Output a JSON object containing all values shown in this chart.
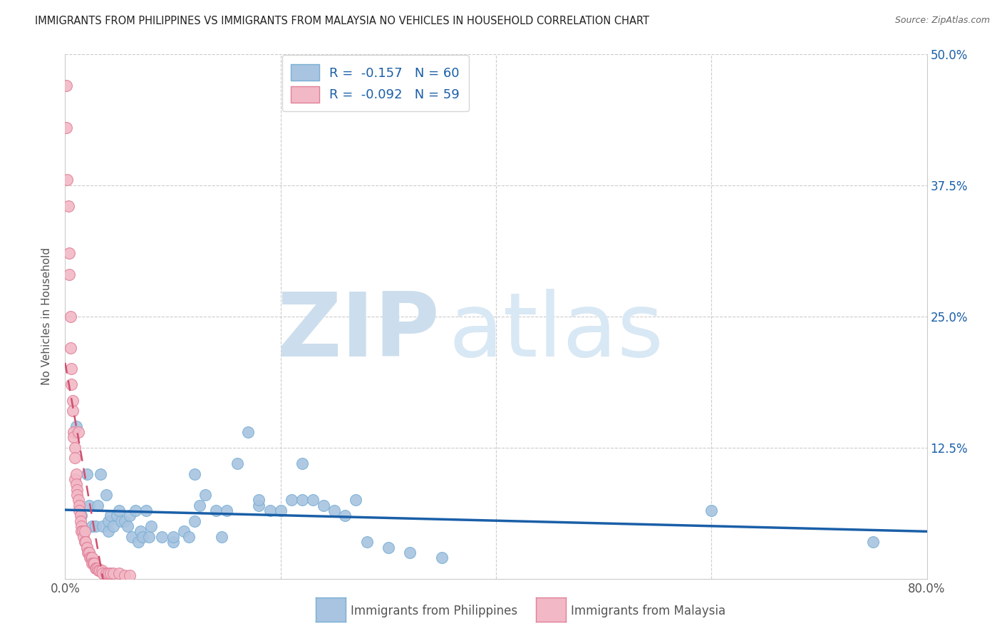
{
  "title": "IMMIGRANTS FROM PHILIPPINES VS IMMIGRANTS FROM MALAYSIA NO VEHICLES IN HOUSEHOLD CORRELATION CHART",
  "source": "Source: ZipAtlas.com",
  "ylabel": "No Vehicles in Household",
  "xlabel_philippines": "Immigrants from Philippines",
  "xlabel_malaysia": "Immigrants from Malaysia",
  "xlim": [
    0.0,
    0.8
  ],
  "ylim": [
    0.0,
    0.5
  ],
  "yticks": [
    0.0,
    0.125,
    0.25,
    0.375,
    0.5
  ],
  "xticks": [
    0.0,
    0.2,
    0.4,
    0.6,
    0.8
  ],
  "R_philippines": -0.157,
  "N_philippines": 60,
  "R_malaysia": -0.092,
  "N_malaysia": 59,
  "color_philippines": "#a8c4e0",
  "color_philippines_edge": "#7aafd4",
  "color_philippines_line": "#1a5fa8",
  "color_malaysia": "#f2b8c6",
  "color_malaysia_edge": "#e08098",
  "color_malaysia_line": "#d05070",
  "background_color": "#ffffff",
  "title_fontsize": 10.5,
  "source_fontsize": 9,
  "philippines_x": [
    0.01,
    0.015,
    0.02,
    0.022,
    0.025,
    0.028,
    0.03,
    0.033,
    0.035,
    0.038,
    0.04,
    0.04,
    0.042,
    0.045,
    0.048,
    0.05,
    0.052,
    0.055,
    0.058,
    0.06,
    0.062,
    0.065,
    0.068,
    0.07,
    0.072,
    0.075,
    0.078,
    0.08,
    0.09,
    0.1,
    0.1,
    0.11,
    0.115,
    0.12,
    0.12,
    0.125,
    0.13,
    0.14,
    0.145,
    0.15,
    0.16,
    0.17,
    0.18,
    0.18,
    0.19,
    0.2,
    0.21,
    0.22,
    0.22,
    0.23,
    0.24,
    0.25,
    0.26,
    0.27,
    0.28,
    0.3,
    0.32,
    0.35,
    0.6,
    0.75
  ],
  "philippines_y": [
    0.145,
    0.06,
    0.1,
    0.07,
    0.05,
    0.05,
    0.07,
    0.1,
    0.05,
    0.08,
    0.045,
    0.055,
    0.06,
    0.05,
    0.06,
    0.065,
    0.055,
    0.055,
    0.05,
    0.06,
    0.04,
    0.065,
    0.035,
    0.045,
    0.04,
    0.065,
    0.04,
    0.05,
    0.04,
    0.035,
    0.04,
    0.045,
    0.04,
    0.1,
    0.055,
    0.07,
    0.08,
    0.065,
    0.04,
    0.065,
    0.11,
    0.14,
    0.07,
    0.075,
    0.065,
    0.065,
    0.075,
    0.11,
    0.075,
    0.075,
    0.07,
    0.065,
    0.06,
    0.075,
    0.035,
    0.03,
    0.025,
    0.02,
    0.065,
    0.035
  ],
  "malaysia_x": [
    0.001,
    0.001,
    0.002,
    0.003,
    0.004,
    0.004,
    0.005,
    0.005,
    0.006,
    0.006,
    0.007,
    0.007,
    0.008,
    0.008,
    0.009,
    0.009,
    0.009,
    0.01,
    0.01,
    0.011,
    0.011,
    0.012,
    0.012,
    0.013,
    0.013,
    0.014,
    0.014,
    0.015,
    0.015,
    0.016,
    0.017,
    0.018,
    0.018,
    0.019,
    0.02,
    0.02,
    0.021,
    0.022,
    0.022,
    0.023,
    0.024,
    0.025,
    0.025,
    0.026,
    0.027,
    0.028,
    0.029,
    0.03,
    0.031,
    0.032,
    0.034,
    0.035,
    0.038,
    0.04,
    0.042,
    0.045,
    0.05,
    0.055,
    0.06
  ],
  "malaysia_y": [
    0.47,
    0.43,
    0.38,
    0.355,
    0.31,
    0.29,
    0.25,
    0.22,
    0.2,
    0.185,
    0.17,
    0.16,
    0.14,
    0.135,
    0.125,
    0.115,
    0.095,
    0.1,
    0.09,
    0.085,
    0.08,
    0.14,
    0.075,
    0.07,
    0.065,
    0.06,
    0.055,
    0.05,
    0.045,
    0.045,
    0.04,
    0.045,
    0.035,
    0.035,
    0.03,
    0.03,
    0.025,
    0.025,
    0.025,
    0.02,
    0.02,
    0.02,
    0.015,
    0.015,
    0.015,
    0.01,
    0.01,
    0.01,
    0.008,
    0.008,
    0.008,
    0.005,
    0.005,
    0.005,
    0.005,
    0.005,
    0.005,
    0.003,
    0.003
  ]
}
